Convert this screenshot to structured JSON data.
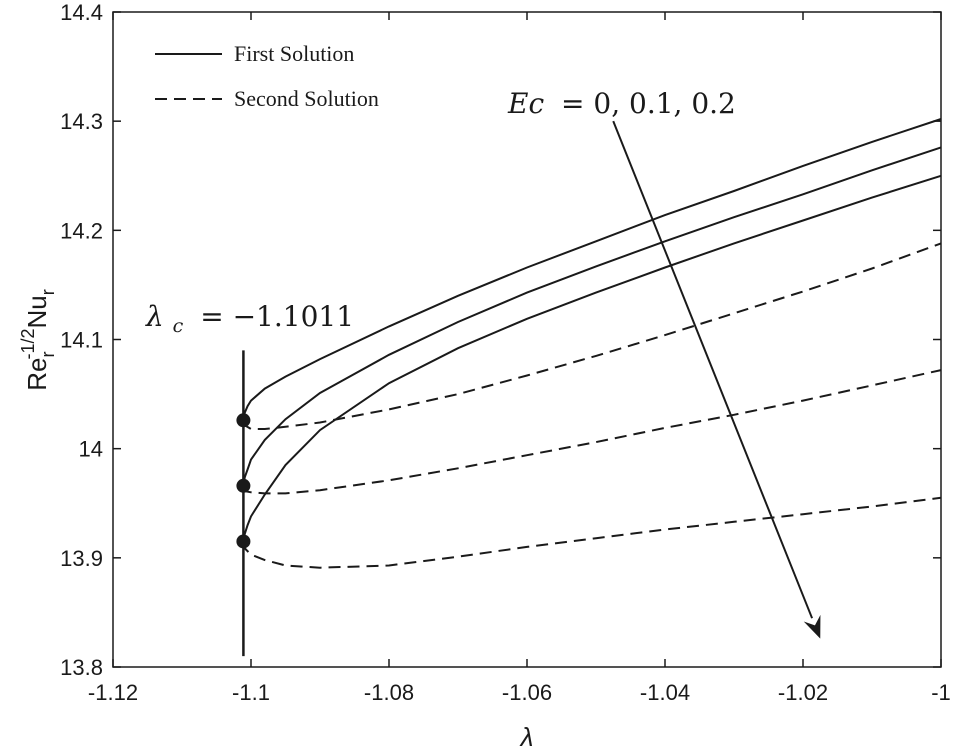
{
  "chart_data": {
    "type": "line",
    "title": "",
    "xlabel": "λ",
    "ylabel": "Re_r^-1/2 Nu_r",
    "ylabel_parts": {
      "base1": "Re",
      "sub1": "r",
      "sup1": "-1/2",
      "base2": "Nu",
      "sub2": "r"
    },
    "xlim": [
      -1.12,
      -1.0
    ],
    "ylim": [
      13.8,
      14.4
    ],
    "xticks": [
      -1.12,
      -1.1,
      -1.08,
      -1.06,
      -1.04,
      -1.02,
      -1.0
    ],
    "xtick_labels": [
      "-1.12",
      "-1.1",
      "-1.08",
      "-1.06",
      "-1.04",
      "-1.02",
      "-1"
    ],
    "yticks": [
      13.8,
      13.9,
      14.0,
      14.1,
      14.2,
      14.3,
      14.4
    ],
    "ytick_labels": [
      "13.8",
      "13.9",
      "14",
      "14.1",
      "14.2",
      "14.3",
      "14.4"
    ],
    "grid": false,
    "legend_position": "top-left",
    "legend": [
      {
        "label": "First Solution",
        "style": "solid"
      },
      {
        "label": "Second Solution",
        "style": "dashed"
      }
    ],
    "series": [
      {
        "style": "solid",
        "x": [
          -1.1011,
          -1.1009,
          -1.1005,
          -1.1,
          -1.098,
          -1.095,
          -1.09,
          -1.08,
          -1.07,
          -1.06,
          -1.05,
          -1.04,
          -1.03,
          -1.02,
          -1.01,
          -1.0
        ],
        "y": [
          14.026,
          14.033,
          14.039,
          14.044,
          14.055,
          14.066,
          14.082,
          14.112,
          14.14,
          14.166,
          14.19,
          14.214,
          14.236,
          14.259,
          14.281,
          14.302
        ]
      },
      {
        "style": "dashed",
        "x": [
          -1.1011,
          -1.1008,
          -1.1,
          -1.098,
          -1.095,
          -1.09,
          -1.08,
          -1.07,
          -1.06,
          -1.05,
          -1.04,
          -1.03,
          -1.02,
          -1.01,
          -1.0
        ],
        "y": [
          14.026,
          14.021,
          14.018,
          14.018,
          14.02,
          14.024,
          14.036,
          14.05,
          14.067,
          14.085,
          14.104,
          14.124,
          14.144,
          14.165,
          14.188
        ]
      },
      {
        "style": "solid",
        "x": [
          -1.1011,
          -1.1009,
          -1.1005,
          -1.1,
          -1.098,
          -1.095,
          -1.09,
          -1.08,
          -1.07,
          -1.06,
          -1.05,
          -1.04,
          -1.03,
          -1.02,
          -1.01,
          -1.0
        ],
        "y": [
          13.966,
          13.974,
          13.981,
          13.99,
          14.008,
          14.027,
          14.051,
          14.086,
          14.116,
          14.143,
          14.167,
          14.19,
          14.212,
          14.233,
          14.255,
          14.276
        ]
      },
      {
        "style": "dashed",
        "x": [
          -1.1011,
          -1.1008,
          -1.1,
          -1.098,
          -1.095,
          -1.09,
          -1.08,
          -1.07,
          -1.06,
          -1.05,
          -1.04,
          -1.03,
          -1.02,
          -1.01,
          -1.0
        ],
        "y": [
          13.966,
          13.961,
          13.96,
          13.959,
          13.959,
          13.962,
          13.971,
          13.982,
          13.994,
          14.006,
          14.019,
          14.031,
          14.044,
          14.058,
          14.072
        ]
      },
      {
        "style": "solid",
        "x": [
          -1.1011,
          -1.1009,
          -1.1005,
          -1.1,
          -1.098,
          -1.095,
          -1.09,
          -1.08,
          -1.07,
          -1.06,
          -1.05,
          -1.04,
          -1.03,
          -1.02,
          -1.01,
          -1.0
        ],
        "y": [
          13.915,
          13.922,
          13.93,
          13.938,
          13.958,
          13.985,
          14.017,
          14.06,
          14.092,
          14.119,
          14.143,
          14.166,
          14.188,
          14.209,
          14.23,
          14.25
        ]
      },
      {
        "style": "dashed",
        "x": [
          -1.1011,
          -1.1008,
          -1.1,
          -1.098,
          -1.095,
          -1.09,
          -1.08,
          -1.07,
          -1.06,
          -1.05,
          -1.04,
          -1.03,
          -1.02,
          -1.01,
          -1.0
        ],
        "y": [
          13.915,
          13.908,
          13.903,
          13.898,
          13.893,
          13.891,
          13.893,
          13.901,
          13.91,
          13.918,
          13.926,
          13.933,
          13.94,
          13.947,
          13.955
        ]
      }
    ],
    "critical_points": [
      {
        "x": -1.1011,
        "y": 14.026
      },
      {
        "x": -1.1011,
        "y": 13.966
      },
      {
        "x": -1.1011,
        "y": 13.915
      }
    ],
    "vertical_line": {
      "x": -1.1011,
      "y_range": [
        13.81,
        14.09
      ]
    },
    "arrow": {
      "from": [
        -1.0475,
        14.3
      ],
      "to": [
        -1.0175,
        13.826
      ]
    },
    "annotations": {
      "ec_prefix": "Ec",
      "ec_values": "= 0, 0.1, 0.2",
      "lambda_c_prefix": "λ",
      "lambda_c_sub": "c",
      "lambda_c_value": "= −1.1011"
    }
  }
}
